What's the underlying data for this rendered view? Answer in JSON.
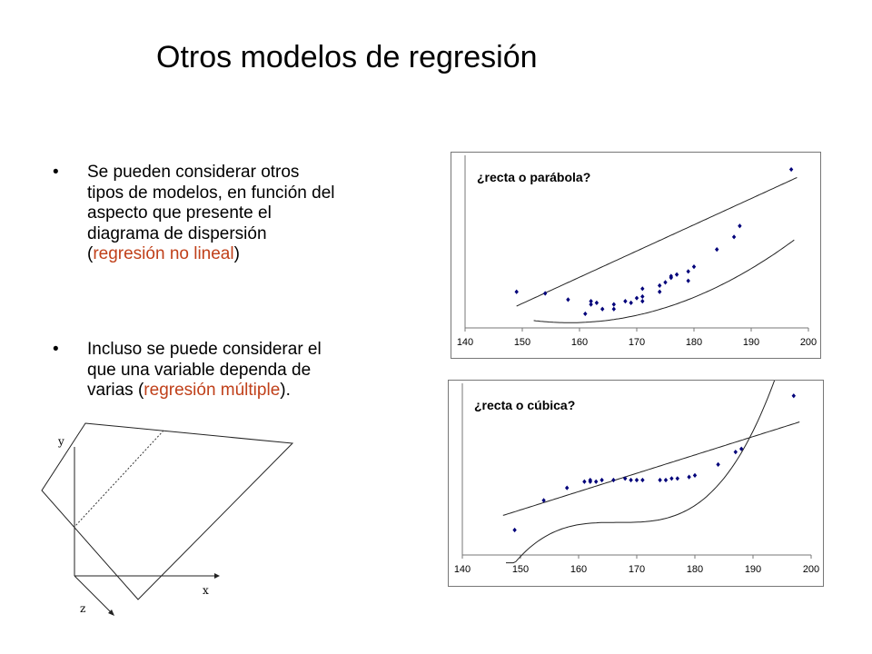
{
  "title": "Otros modelos de regresión",
  "bullets": [
    {
      "marker": "•",
      "lines": [
        [
          "Se pueden considerar otros"
        ],
        [
          "tipos de modelos, en función del"
        ],
        [
          "aspecto que presente el"
        ],
        [
          "diagrama de dispersión"
        ],
        [
          "(",
          "regresión no lineal",
          ")"
        ]
      ]
    },
    {
      "marker": "•",
      "lines": [
        [
          "Incluso se puede considerar el"
        ],
        [
          "que una variable dependa de"
        ],
        [
          "varias (",
          "regresión múltiple",
          ")."
        ]
      ]
    }
  ],
  "diagram": {
    "axis_y": "y",
    "axis_x": "x",
    "axis_z": "z"
  },
  "colors": {
    "highlight": "#c0401a",
    "points": "#00007a"
  },
  "chart_data": [
    {
      "type": "scatter",
      "title": "¿recta o parábola?",
      "xlabel": "",
      "ylabel": "",
      "xlim": [
        140,
        200
      ],
      "ylim": [
        -0.05,
        1.05
      ],
      "xticks": [
        140,
        150,
        160,
        170,
        180,
        190,
        200
      ],
      "grid": false,
      "points": [
        [
          149,
          0.18
        ],
        [
          154,
          0.17
        ],
        [
          158,
          0.13
        ],
        [
          161,
          0.04
        ],
        [
          162,
          0.1
        ],
        [
          162,
          0.12
        ],
        [
          163,
          0.11
        ],
        [
          164,
          0.07
        ],
        [
          166,
          0.07
        ],
        [
          166,
          0.1
        ],
        [
          168,
          0.12
        ],
        [
          169,
          0.11
        ],
        [
          170,
          0.14
        ],
        [
          171,
          0.12
        ],
        [
          171,
          0.15
        ],
        [
          171,
          0.2
        ],
        [
          174,
          0.18
        ],
        [
          174,
          0.22
        ],
        [
          175,
          0.24
        ],
        [
          176,
          0.27
        ],
        [
          176,
          0.28
        ],
        [
          177,
          0.29
        ],
        [
          179,
          0.25
        ],
        [
          179,
          0.31
        ],
        [
          180,
          0.34
        ],
        [
          184,
          0.45
        ],
        [
          187,
          0.53
        ],
        [
          188,
          0.6
        ],
        [
          197,
          0.96
        ]
      ],
      "fits": [
        {
          "kind": "linear",
          "coeffs": [
            -2.4022,
            0.01672
          ]
        },
        {
          "kind": "quadratic",
          "coeffs": [
            8.5635,
            -0.10842,
            0.0003425
          ]
        }
      ]
    },
    {
      "type": "scatter",
      "title": "¿recta o cúbica?",
      "xlabel": "",
      "ylabel": "",
      "xlim": [
        140,
        200
      ],
      "ylim": [
        -0.05,
        1.05
      ],
      "xticks": [
        140,
        150,
        160,
        170,
        180,
        190,
        200
      ],
      "grid": false,
      "points": [
        [
          149,
          0.11
        ],
        [
          154,
          0.3
        ],
        [
          158,
          0.38
        ],
        [
          161,
          0.42
        ],
        [
          162,
          0.42
        ],
        [
          162,
          0.43
        ],
        [
          163,
          0.42
        ],
        [
          164,
          0.43
        ],
        [
          166,
          0.43
        ],
        [
          168,
          0.44
        ],
        [
          169,
          0.43
        ],
        [
          170,
          0.43
        ],
        [
          171,
          0.43
        ],
        [
          174,
          0.43
        ],
        [
          175,
          0.43
        ],
        [
          176,
          0.44
        ],
        [
          177,
          0.44
        ],
        [
          179,
          0.45
        ],
        [
          180,
          0.46
        ],
        [
          184,
          0.53
        ],
        [
          187,
          0.61
        ],
        [
          188,
          0.63
        ],
        [
          197,
          0.97
        ]
      ],
      "fits": [
        {
          "kind": "linear",
          "coeffs": [
            -1.5227,
            0.011743
          ]
        },
        {
          "kind": "cubic",
          "coeffs": [
            -215.16846,
            3.874185,
            -0.023235,
            4.645e-05
          ]
        }
      ]
    }
  ]
}
